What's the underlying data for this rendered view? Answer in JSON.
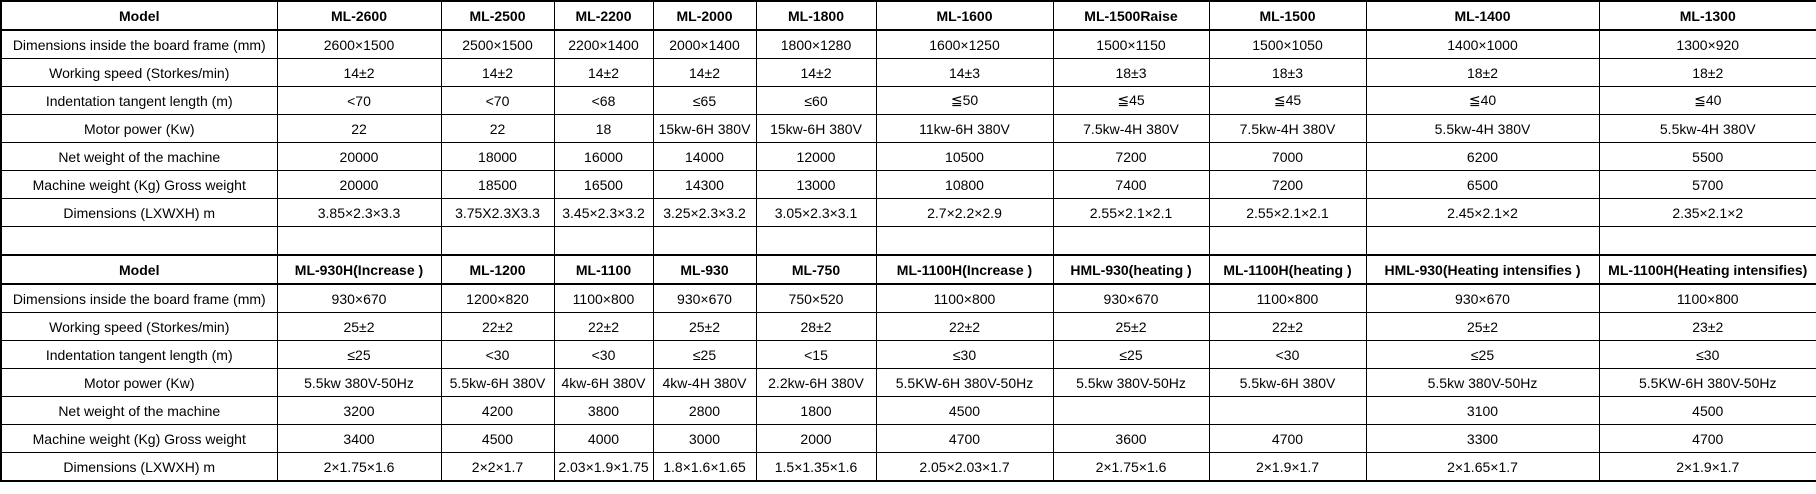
{
  "spec_table": {
    "row_labels": [
      "Model",
      "Dimensions inside the board frame (mm)",
      "Working speed (Storkes/min)",
      "Indentation tangent length (m)",
      "Motor power (Kw)",
      "Net weight of the machine",
      "Machine weight (Kg) Gross weight",
      "Dimensions (LXWXH) m"
    ],
    "sections": [
      {
        "models": [
          "ML-2600",
          "ML-2500",
          "ML-2200",
          "ML-2000",
          "ML-1800",
          "ML-1600",
          "ML-1500Raise",
          "ML-1500",
          "ML-1400",
          "ML-1300"
        ],
        "rows": [
          [
            "2600×1500",
            "2500×1500",
            "2200×1400",
            "2000×1400",
            "1800×1280",
            "1600×1250",
            "1500×1150",
            "1500×1050",
            "1400×1000",
            "1300×920"
          ],
          [
            "14±2",
            "14±2",
            "14±2",
            "14±2",
            "14±2",
            "14±3",
            "18±3",
            "18±3",
            "18±2",
            "18±2"
          ],
          [
            "<70",
            "<70",
            "<68",
            "≤65",
            "≤60",
            "≦50",
            "≦45",
            "≦45",
            "≦40",
            "≦40"
          ],
          [
            "22",
            "22",
            "18",
            "15kw-6H 380V",
            "15kw-6H 380V",
            "11kw-6H 380V",
            "7.5kw-4H 380V",
            "7.5kw-4H 380V",
            "5.5kw-4H 380V",
            "5.5kw-4H 380V"
          ],
          [
            "20000",
            "18000",
            "16000",
            "14000",
            "12000",
            "10500",
            "7200",
            "7000",
            "6200",
            "5500"
          ],
          [
            "20000",
            "18500",
            "16500",
            "14300",
            "13000",
            "10800",
            "7400",
            "7200",
            "6500",
            "5700"
          ],
          [
            "3.85×2.3×3.3",
            "3.75X2.3X3.3",
            "3.45×2.3×3.2",
            "3.25×2.3×3.2",
            "3.05×2.3×3.1",
            "2.7×2.2×2.9",
            "2.55×2.1×2.1",
            "2.55×2.1×2.1",
            "2.45×2.1×2",
            "2.35×2.1×2"
          ]
        ]
      },
      {
        "models": [
          "ML-930H(Increase )",
          "ML-1200",
          "ML-1100",
          "ML-930",
          "ML-750",
          "ML-1100H(Increase )",
          "HML-930(heating )",
          "ML-1100H(heating )",
          "HML-930(Heating intensifies )",
          "ML-1100H(Heating intensifies)"
        ],
        "rows": [
          [
            "930×670",
            "1200×820",
            "1100×800",
            "930×670",
            "750×520",
            "1100×800",
            "930×670",
            "1100×800",
            "930×670",
            "1100×800"
          ],
          [
            "25±2",
            "22±2",
            "22±2",
            "25±2",
            "28±2",
            "22±2",
            "25±2",
            "22±2",
            "25±2",
            "23±2"
          ],
          [
            "≤25",
            "<30",
            "<30",
            "≤25",
            "<15",
            "≤30",
            "≤25",
            "<30",
            "≤25",
            "≤30"
          ],
          [
            "5.5kw 380V-50Hz",
            "5.5kw-6H 380V",
            "4kw-6H 380V",
            "4kw-4H 380V",
            "2.2kw-6H 380V",
            "5.5KW-6H 380V-50Hz",
            "5.5kw 380V-50Hz",
            "5.5kw-6H 380V",
            "5.5kw 380V-50Hz",
            "5.5KW-6H 380V-50Hz"
          ],
          [
            "3200",
            "4200",
            "3800",
            "2800",
            "1800",
            "4500",
            "",
            "",
            "3100",
            "4500"
          ],
          [
            "3400",
            "4500",
            "4000",
            "3000",
            "2000",
            "4700",
            "3600",
            "4700",
            "3300",
            "4700"
          ],
          [
            "2×1.75×1.6",
            "2×2×1.7",
            "2.03×1.9×1.75",
            "1.8×1.6×1.65",
            "1.5×1.35×1.6",
            "2.05×2.03×1.7",
            "2×1.75×1.6",
            "2×1.9×1.7",
            "2×1.65×1.7",
            "2×1.9×1.7"
          ]
        ]
      }
    ],
    "colors": {
      "border": "#000000",
      "text": "#000000",
      "background": "#ffffff"
    }
  }
}
